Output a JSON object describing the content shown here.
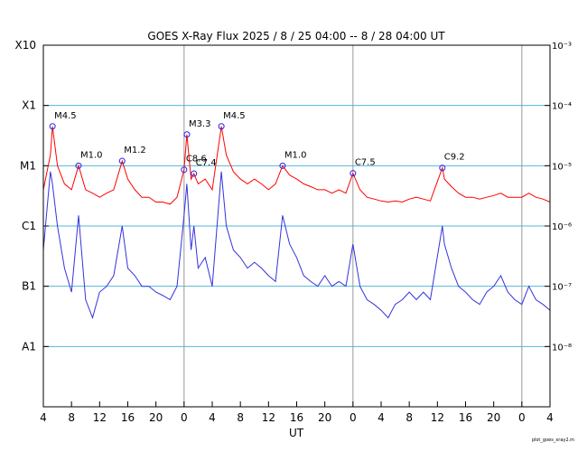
{
  "chart_data": {
    "type": "line",
    "title": "GOES X-Ray Flux   2025  /  8 / 25   04:00 --  8 / 28   04:00   UT",
    "xlabel": "UT",
    "footer": "plot_goes_xray2.m",
    "log_scale": true,
    "grid": true,
    "xlim": [
      0,
      72
    ],
    "xticks": [
      {
        "value": 0,
        "label": "4"
      },
      {
        "value": 4,
        "label": "8"
      },
      {
        "value": 8,
        "label": "12"
      },
      {
        "value": 12,
        "label": "16"
      },
      {
        "value": 16,
        "label": "20"
      },
      {
        "value": 20,
        "label": "0"
      },
      {
        "value": 24,
        "label": "4"
      },
      {
        "value": 28,
        "label": "8"
      },
      {
        "value": 32,
        "label": "12"
      },
      {
        "value": 36,
        "label": "16"
      },
      {
        "value": 40,
        "label": "20"
      },
      {
        "value": 44,
        "label": "0"
      },
      {
        "value": 48,
        "label": "4"
      },
      {
        "value": 52,
        "label": "8"
      },
      {
        "value": 56,
        "label": "12"
      },
      {
        "value": 60,
        "label": "16"
      },
      {
        "value": 64,
        "label": "20"
      },
      {
        "value": 68,
        "label": "0"
      },
      {
        "value": 72,
        "label": "4"
      }
    ],
    "ylim": [
      1e-09,
      0.001
    ],
    "yticks": [
      {
        "value": 0.001,
        "label": "X10"
      },
      {
        "value": 0.0001,
        "label": "X1"
      },
      {
        "value": 1e-05,
        "label": "M1"
      },
      {
        "value": 1e-06,
        "label": "C1"
      },
      {
        "value": 1e-07,
        "label": "B1"
      },
      {
        "value": 1e-08,
        "label": "A1"
      }
    ],
    "y2lim": [
      1e-09,
      0.001
    ],
    "y2ticks": [
      {
        "value": 0.001,
        "label": "10⁻³"
      },
      {
        "value": 0.0001,
        "label": "10⁻⁴"
      },
      {
        "value": 1e-05,
        "label": "10⁻⁵"
      },
      {
        "value": 1e-06,
        "label": "10⁻⁶"
      },
      {
        "value": 1e-07,
        "label": "10⁻⁷"
      },
      {
        "value": 1e-08,
        "label": "10⁻⁸"
      }
    ],
    "x": [
      0,
      1,
      1.3,
      2,
      3,
      4,
      5,
      6,
      7,
      8,
      9,
      10,
      11.2,
      12,
      13,
      14,
      15,
      16,
      17,
      18,
      19,
      20,
      20.4,
      21,
      21.4,
      22,
      23,
      24,
      25.3,
      26,
      27,
      28,
      29,
      30,
      31,
      32,
      33,
      34,
      35,
      36,
      37,
      38,
      39,
      40,
      41,
      42,
      43,
      44,
      45,
      46,
      47,
      48,
      49,
      50,
      51,
      52,
      53,
      54,
      55,
      56.7,
      57,
      58,
      59,
      60,
      61,
      62,
      63,
      64,
      65,
      66,
      67,
      68,
      69,
      70,
      71,
      72
    ],
    "series": [
      {
        "color": "#ff0000",
        "values": [
          4e-06,
          1.5e-05,
          4.5e-05,
          1e-05,
          5e-06,
          4e-06,
          1e-05,
          4e-06,
          3.5e-06,
          3e-06,
          3.5e-06,
          4e-06,
          1.2e-05,
          6e-06,
          4e-06,
          3e-06,
          3e-06,
          2.5e-06,
          2.5e-06,
          2.3e-06,
          3e-06,
          8.6e-06,
          3.3e-05,
          6e-06,
          7.4e-06,
          5e-06,
          6e-06,
          4e-06,
          4.5e-05,
          1.5e-05,
          8e-06,
          6e-06,
          5e-06,
          6e-06,
          5e-06,
          4e-06,
          5e-06,
          1e-05,
          7e-06,
          6e-06,
          5e-06,
          4.5e-06,
          4e-06,
          4e-06,
          3.5e-06,
          4e-06,
          3.5e-06,
          7.5e-06,
          4e-06,
          3e-06,
          2.8e-06,
          2.6e-06,
          2.5e-06,
          2.6e-06,
          2.5e-06,
          2.8e-06,
          3e-06,
          2.8e-06,
          2.6e-06,
          9.2e-06,
          6e-06,
          4.5e-06,
          3.5e-06,
          3e-06,
          3e-06,
          2.8e-06,
          3e-06,
          3.2e-06,
          3.5e-06,
          3e-06,
          3e-06,
          3e-06,
          3.5e-06,
          3e-06,
          2.8e-06,
          2.5e-06
        ]
      },
      {
        "color": "#3333dd",
        "values": [
          4e-07,
          8e-06,
          5e-06,
          1e-06,
          2e-07,
          8e-08,
          1.5e-06,
          6e-08,
          3e-08,
          8e-08,
          1e-07,
          1.5e-07,
          1e-06,
          2e-07,
          1.5e-07,
          1e-07,
          1e-07,
          8e-08,
          7e-08,
          6e-08,
          1e-07,
          1.5e-06,
          5e-06,
          4e-07,
          1e-06,
          2e-07,
          3e-07,
          1e-07,
          8e-06,
          1e-06,
          4e-07,
          3e-07,
          2e-07,
          2.5e-07,
          2e-07,
          1.5e-07,
          1.2e-07,
          1.5e-06,
          5e-07,
          3e-07,
          1.5e-07,
          1.2e-07,
          1e-07,
          1.5e-07,
          1e-07,
          1.2e-07,
          1e-07,
          5e-07,
          1e-07,
          6e-08,
          5e-08,
          4e-08,
          3e-08,
          5e-08,
          6e-08,
          8e-08,
          6e-08,
          8e-08,
          6e-08,
          1e-06,
          5e-07,
          2e-07,
          1e-07,
          8e-08,
          6e-08,
          5e-08,
          8e-08,
          1e-07,
          1.5e-07,
          8e-08,
          6e-08,
          5e-08,
          1e-07,
          6e-08,
          5e-08,
          4e-08
        ]
      }
    ],
    "annotations": [
      {
        "label": "M4.5",
        "x": 1.3,
        "value": 4.5e-05
      },
      {
        "label": "M1.0",
        "x": 5,
        "value": 1e-05
      },
      {
        "label": "M1.2",
        "x": 11.2,
        "value": 1.2e-05
      },
      {
        "label": "C8.6",
        "x": 20,
        "value": 8.6e-06
      },
      {
        "label": "M3.3",
        "x": 20.4,
        "value": 3.3e-05
      },
      {
        "label": "C7.4",
        "x": 21.4,
        "value": 7.4e-06
      },
      {
        "label": "M4.5",
        "x": 25.3,
        "value": 4.5e-05
      },
      {
        "label": "M1.0",
        "x": 34,
        "value": 1e-05
      },
      {
        "label": "C7.5",
        "x": 44,
        "value": 7.5e-06
      },
      {
        "label": "C9.2",
        "x": 56.7,
        "value": 9.2e-06
      }
    ]
  }
}
